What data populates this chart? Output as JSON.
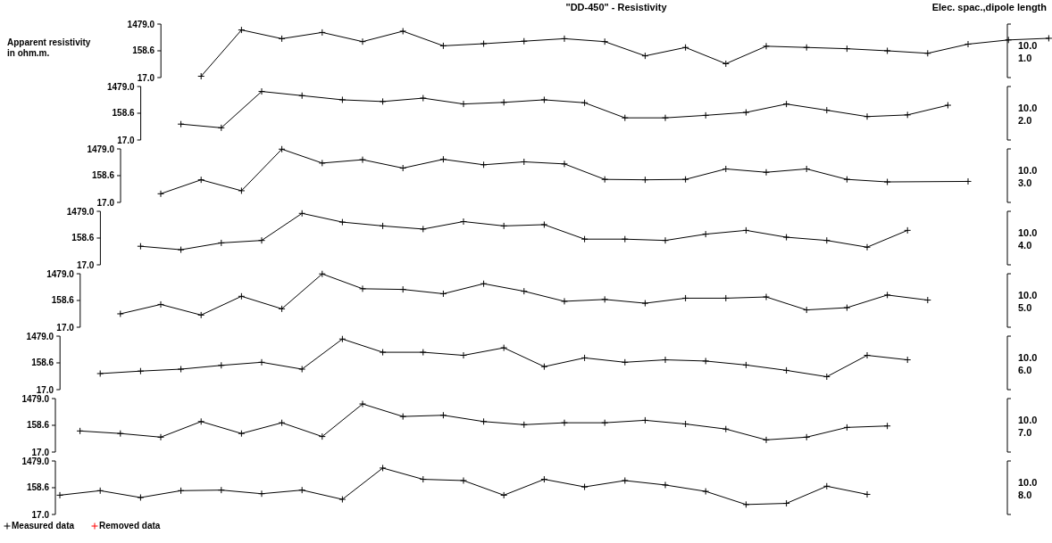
{
  "chart_data": [
    {
      "type": "line",
      "title": "\"DD-450\" - Resistivity",
      "ylabel": "Apparent resistivity in ohm.m.",
      "annotations": [
        "Elec. spac.,dipole length",
        "10.0",
        "1.0"
      ],
      "log": true,
      "ylim": [
        17,
        1479
      ],
      "yticks": [
        {
          "value": 17,
          "label": "17.0"
        },
        {
          "value": 158.6,
          "label": "158.6"
        },
        {
          "value": 1479,
          "label": "1479.0"
        }
      ],
      "categories": [
        null,
        null,
        null,
        null,
        null,
        null,
        null,
        null,
        null,
        null,
        null,
        null,
        null,
        null,
        null,
        null,
        null,
        null,
        null,
        null,
        null,
        null
      ],
      "tick_labels": "y",
      "marker": "cross",
      "series": [
        {
          "color": "#000000",
          "values": [
            19,
            905,
            437,
            736,
            342,
            817,
            241,
            287,
            354,
            437,
            342,
            104,
            210,
            54,
            233,
            210,
            189,
            159,
            129,
            277,
            393,
            451
          ]
        }
      ]
    },
    {
      "type": "line",
      "annotations": [
        "10.0",
        "2.0"
      ],
      "log": true,
      "ylim": [
        17,
        1479
      ],
      "yticks": [
        {
          "value": 17,
          "label": "17.0"
        },
        {
          "value": 158.6,
          "label": "158.6"
        },
        {
          "value": 1479,
          "label": "1479.0"
        }
      ],
      "categories": [
        null,
        null,
        null,
        null,
        null,
        null,
        null,
        null,
        null,
        null,
        null,
        null,
        null,
        null,
        null,
        null,
        null,
        null,
        null,
        null
      ],
      "tick_labels": "y",
      "marker": "cross",
      "series": [
        {
          "color": "#000000",
          "values": [
            64,
            47,
            977,
            689,
            486,
            422,
            559,
            343,
            393,
            486,
            380,
            108,
            108,
            133,
            170,
            342,
            204,
            120,
            138,
            309
          ]
        }
      ]
    },
    {
      "type": "line",
      "annotations": [
        "10.0",
        "3.0"
      ],
      "log": true,
      "ylim": [
        17,
        1479
      ],
      "yticks": [
        {
          "value": 17,
          "label": "17.0"
        },
        {
          "value": 158.6,
          "label": "158.6"
        },
        {
          "value": 1479,
          "label": "1479.0"
        }
      ],
      "categories": [
        null,
        null,
        null,
        null,
        null,
        null,
        null,
        null,
        null,
        null,
        null,
        null,
        null,
        null,
        null,
        null,
        null,
        null,
        null,
        null,
        null
      ],
      "tick_labels": "y",
      "marker": "cross",
      "series": [
        {
          "color": "#000000",
          "values": [
            35,
            112,
            45,
            1450,
            453,
            600,
            298,
            620,
            393,
            503,
            422,
            116,
            112,
            116,
            278,
            210,
            278,
            116,
            94,
            null,
            98
          ]
        }
      ]
    },
    {
      "type": "line",
      "annotations": [
        "10.0",
        "4.0"
      ],
      "log": true,
      "ylim": [
        17,
        1479
      ],
      "yticks": [
        {
          "value": 17,
          "label": "17.0"
        },
        {
          "value": 158.6,
          "label": "158.6"
        },
        {
          "value": 1479,
          "label": "1479.0"
        }
      ],
      "categories": [
        null,
        null,
        null,
        null,
        null,
        null,
        null,
        null,
        null,
        null,
        null,
        null,
        null,
        null,
        null,
        null,
        null,
        null,
        null,
        null
      ],
      "tick_labels": "y",
      "marker": "cross",
      "series": [
        {
          "color": "#000000",
          "values": [
            80,
            60,
            106,
            130,
            1248,
            600,
            437,
            336,
            628,
            437,
            486,
            145,
            145,
            130,
            220,
            302,
            170,
            130,
            74,
            302
          ]
        }
      ]
    },
    {
      "type": "line",
      "annotations": [
        "10.0",
        "5.0"
      ],
      "log": true,
      "ylim": [
        17,
        1479
      ],
      "yticks": [
        {
          "value": 17,
          "label": "17.0"
        },
        {
          "value": 158.6,
          "label": "158.6"
        },
        {
          "value": 1479,
          "label": "1479.0"
        }
      ],
      "categories": [
        null,
        null,
        null,
        null,
        null,
        null,
        null,
        null,
        null,
        null,
        null,
        null,
        null,
        null,
        null,
        null,
        null,
        null,
        null,
        null,
        null
      ],
      "tick_labels": "y",
      "marker": "cross",
      "series": [
        {
          "color": "#000000",
          "values": [
            52,
            114,
            47,
            225,
            79,
            1460,
            422,
            399,
            278,
            643,
            343,
            148,
            173,
            126,
            192,
            192,
            213,
            72,
            87,
            250,
            164
          ]
        }
      ]
    },
    {
      "type": "line",
      "annotations": [
        "10.0",
        "6.0"
      ],
      "log": true,
      "ylim": [
        17,
        1479
      ],
      "yticks": [
        {
          "value": 17,
          "label": "17.0"
        },
        {
          "value": 158.6,
          "label": "158.6"
        },
        {
          "value": 1479,
          "label": "1479.0"
        }
      ],
      "categories": [
        null,
        null,
        null,
        null,
        null,
        null,
        null,
        null,
        null,
        null,
        null,
        null,
        null,
        null,
        null,
        null,
        null,
        null,
        null,
        null,
        null
      ],
      "tick_labels": "y",
      "marker": "cross",
      "series": [
        {
          "color": "#000000",
          "values": [
            65,
            80,
            94,
            129,
            167,
            94,
            1163,
            385,
            385,
            298,
            559,
            116,
            241,
            167,
            205,
            185,
            133,
            85,
            50,
            298,
            205
          ]
        }
      ]
    },
    {
      "type": "line",
      "annotations": [
        "10.0",
        "7.0"
      ],
      "log": true,
      "ylim": [
        17,
        1479
      ],
      "yticks": [
        {
          "value": 17,
          "label": "17.0"
        },
        {
          "value": 158.6,
          "label": "158.6"
        },
        {
          "value": 1479,
          "label": "1479.0"
        }
      ],
      "categories": [
        null,
        null,
        null,
        null,
        null,
        null,
        null,
        null,
        null,
        null,
        null,
        null,
        null,
        null,
        null,
        null,
        null,
        null,
        null,
        null,
        null
      ],
      "tick_labels": "y",
      "marker": "cross",
      "series": [
        {
          "color": "#000000",
          "values": [
            99,
            80,
            59,
            217,
            80,
            196,
            62,
            943,
            331,
            367,
            217,
            167,
            196,
            196,
            241,
            177,
            116,
            47,
            59,
            133,
            150
          ]
        }
      ]
    },
    {
      "type": "line",
      "annotations": [
        "10.0",
        "8.0"
      ],
      "log": true,
      "ylim": [
        17,
        1479
      ],
      "yticks": [
        {
          "value": 17,
          "label": "17.0"
        },
        {
          "value": 158.6,
          "label": "158.6"
        },
        {
          "value": 1479,
          "label": "1479.0"
        }
      ],
      "categories": [
        null,
        null,
        null,
        null,
        null,
        null,
        null,
        null,
        null,
        null,
        null,
        null,
        null,
        null,
        null,
        null,
        null,
        null,
        null,
        null,
        null
      ],
      "tick_labels": "y",
      "marker": "cross",
      "legend": "bottom left",
      "series": [
        {
          "name": "Measured data",
          "color": "#000000",
          "values": [
            85,
            124,
            70,
            124,
            130,
            96,
            130,
            60,
            820,
            320,
            288,
            85,
            320,
            170,
            288,
            199,
            117,
            39,
            43,
            180,
            91
          ]
        },
        {
          "name": "Removed data",
          "color": "#ff0000",
          "values": [
            null,
            null,
            null,
            null,
            null,
            null,
            null,
            null,
            null,
            null,
            null,
            null,
            null,
            null,
            null,
            null,
            null,
            null,
            null,
            null,
            null
          ]
        }
      ]
    }
  ]
}
